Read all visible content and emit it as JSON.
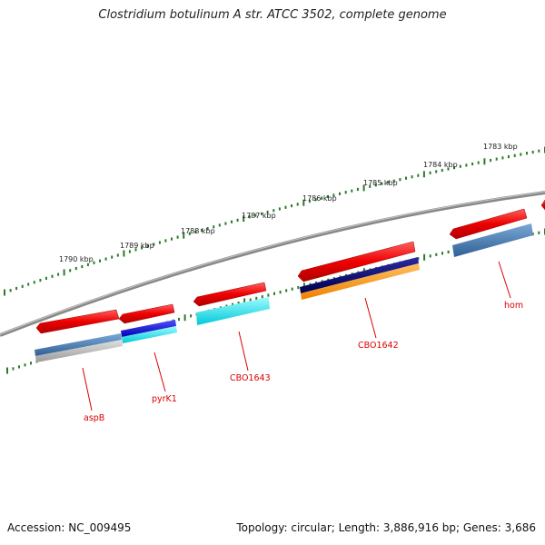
{
  "title": "Clostridium botulinum A str. ATCC 3502, complete genome",
  "footer": {
    "accession_label": "Accession:",
    "accession": "NC_009495",
    "summary": "Topology: circular; Length: 3,886,916 bp; Genes: 3,686"
  },
  "scale_labels": [
    "1790 kbp",
    "1789 kbp",
    "1788 kbp",
    "1787 kbp",
    "1786 kbp",
    "1785 kbp",
    "1784 kbp",
    "1783 kbp"
  ],
  "genes": [
    {
      "name": "aspB"
    },
    {
      "name": "pyrK1"
    },
    {
      "name": "CBO1643"
    },
    {
      "name": "CBO1642"
    },
    {
      "name": "hom"
    }
  ],
  "colors": {
    "backbone": "#808080",
    "cds": "#ee0000",
    "tick": "#2a7a2a",
    "label": "#dd0000",
    "steelblue": "#4a7fb5",
    "gray": "#b4b4b4",
    "blue": "#1010dd",
    "cyan": "#00e5f0",
    "navy": "#0a0a70",
    "orange": "#ff9900"
  }
}
